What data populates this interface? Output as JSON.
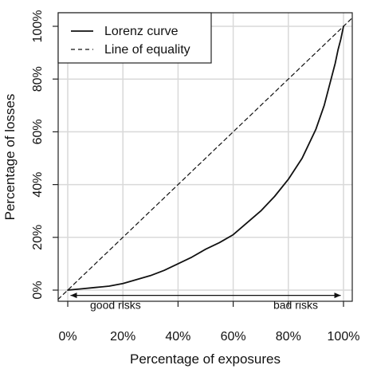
{
  "chart_data": {
    "type": "line",
    "xlabel": "Percentage of exposures",
    "ylabel": "Percentage of losses",
    "xlim": [
      0,
      100
    ],
    "ylim": [
      0,
      100
    ],
    "x_ticks": [
      "0%",
      "20%",
      "40%",
      "60%",
      "80%",
      "100%"
    ],
    "y_ticks": [
      "0%",
      "20%",
      "40%",
      "60%",
      "80%",
      "100%"
    ],
    "grid": true,
    "legend_position": "top-left",
    "legend": [
      {
        "label": "Lorenz curve",
        "line_style": "solid"
      },
      {
        "label": "Line of equality",
        "line_style": "dashed"
      }
    ],
    "series": [
      {
        "name": "Lorenz curve",
        "line_style": "solid",
        "x": [
          0,
          5,
          10,
          15,
          20,
          25,
          30,
          35,
          40,
          45,
          50,
          55,
          60,
          65,
          70,
          75,
          80,
          85,
          90,
          93,
          95,
          97,
          98,
          99,
          100
        ],
        "y": [
          0,
          0.5,
          1,
          1.5,
          2.5,
          4,
          5.5,
          7.5,
          10,
          12.5,
          15.5,
          18,
          21,
          25.5,
          30,
          35.5,
          42,
          50,
          61,
          70,
          78,
          86,
          91,
          95,
          100
        ]
      },
      {
        "name": "Line of equality",
        "line_style": "dashed",
        "x": [
          -3.5,
          103.5
        ],
        "y": [
          -3.5,
          103.5
        ]
      }
    ],
    "annotations": {
      "arrow_y": -2,
      "arrow_x_range": [
        1,
        99
      ],
      "left_label": "good risks",
      "right_label": "bad risks"
    },
    "colors": {
      "series": "#111111",
      "grid": "#d9d9d9",
      "frame": "#222222",
      "background": "#ffffff"
    }
  }
}
